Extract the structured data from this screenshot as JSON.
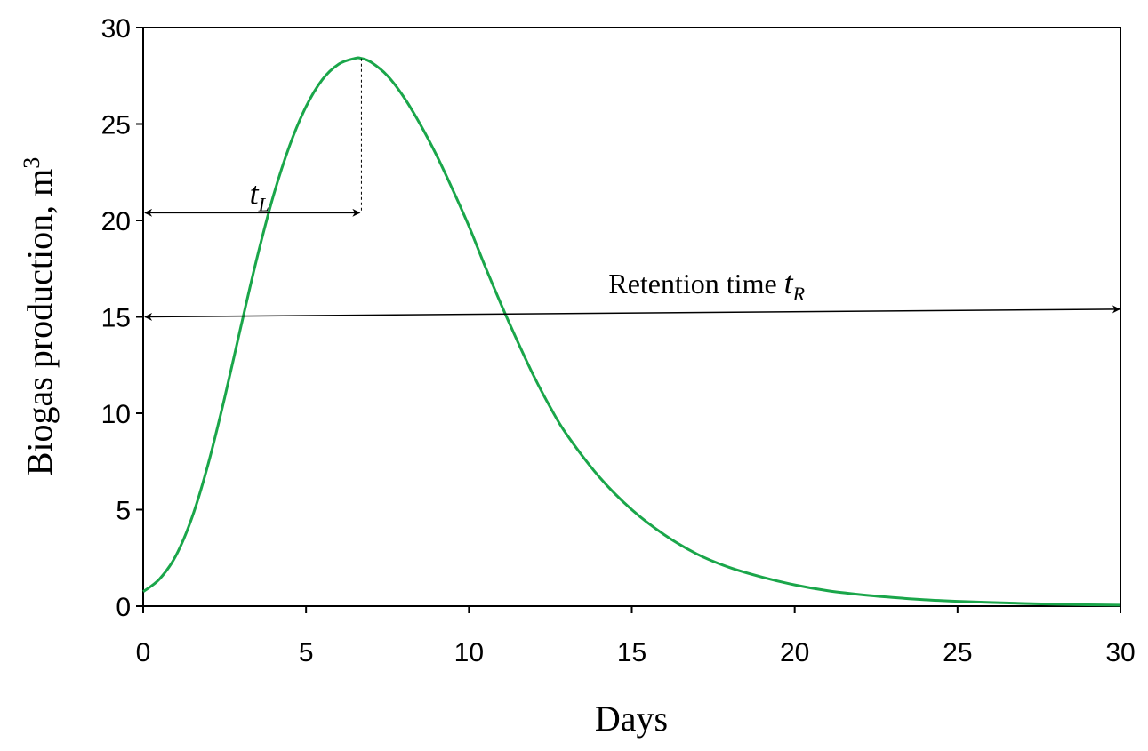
{
  "chart_data": {
    "type": "line",
    "title": "",
    "xlabel": "Days",
    "ylabel": "Biogas production, m",
    "ylabel_sup": "3",
    "xlim": [
      0,
      30
    ],
    "ylim": [
      0,
      30
    ],
    "xticks": [
      0,
      5,
      10,
      15,
      20,
      25,
      30
    ],
    "yticks": [
      0,
      5,
      10,
      15,
      20,
      25,
      30
    ],
    "grid": false,
    "series": [
      {
        "name": "Biogas production",
        "color": "#1aa64a",
        "x": [
          0,
          0.5,
          1,
          1.5,
          2,
          2.5,
          3,
          3.5,
          4,
          4.5,
          5,
          5.5,
          6,
          6.5,
          6.7,
          7,
          7.5,
          8,
          8.5,
          9,
          9.5,
          10,
          10.5,
          11,
          11.5,
          12,
          12.5,
          13,
          14,
          15,
          16,
          17,
          18,
          19,
          20,
          21,
          22,
          23,
          24,
          25,
          26,
          27,
          28,
          29,
          30
        ],
        "y": [
          0.75,
          1.4,
          2.6,
          4.6,
          7.4,
          10.8,
          14.5,
          18.1,
          21.3,
          23.9,
          25.9,
          27.3,
          28.1,
          28.4,
          28.4,
          28.2,
          27.5,
          26.4,
          25.0,
          23.4,
          21.6,
          19.7,
          17.6,
          15.6,
          13.7,
          11.9,
          10.3,
          8.9,
          6.7,
          5.0,
          3.7,
          2.7,
          2.0,
          1.5,
          1.1,
          0.8,
          0.6,
          0.45,
          0.33,
          0.25,
          0.19,
          0.14,
          0.1,
          0.07,
          0.05
        ]
      }
    ],
    "annotations": {
      "peak": {
        "x": 6.7,
        "y": 28.4
      },
      "tL": {
        "symbol": "t",
        "subscript": "L",
        "x_from": 0,
        "x_to": 6.7,
        "y": 20.4
      },
      "tR": {
        "label": "Retention time",
        "symbol": "t",
        "subscript": "R",
        "x_from": 0,
        "x_to": 30,
        "y_from": 15.0,
        "y_to": 15.4
      }
    }
  }
}
